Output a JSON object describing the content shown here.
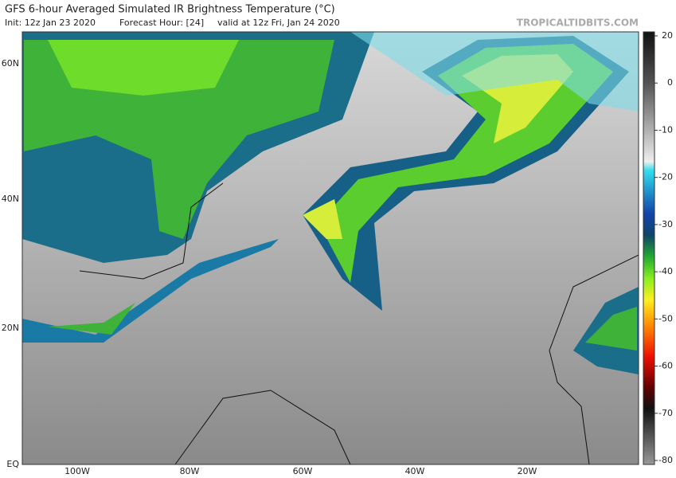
{
  "header": {
    "title": "GFS 6-hour Averaged Simulated IR Brightness Temperature (°C)",
    "init": "Init: 12z Jan 23 2020",
    "forecast": "Forecast Hour: [24]",
    "valid": "valid at 12z Fri, Jan 24 2020",
    "source": "TROPICALTIDBITS.COM"
  },
  "map": {
    "lat_labels": [
      "60N",
      "40N",
      "20N",
      "EQ"
    ],
    "lon_labels": [
      "100W",
      "80W",
      "60W",
      "40W",
      "20W"
    ]
  },
  "colorbar": {
    "ticks": [
      20,
      0,
      -10,
      -20,
      -30,
      -40,
      -50,
      -60,
      -70,
      -80
    ]
  }
}
